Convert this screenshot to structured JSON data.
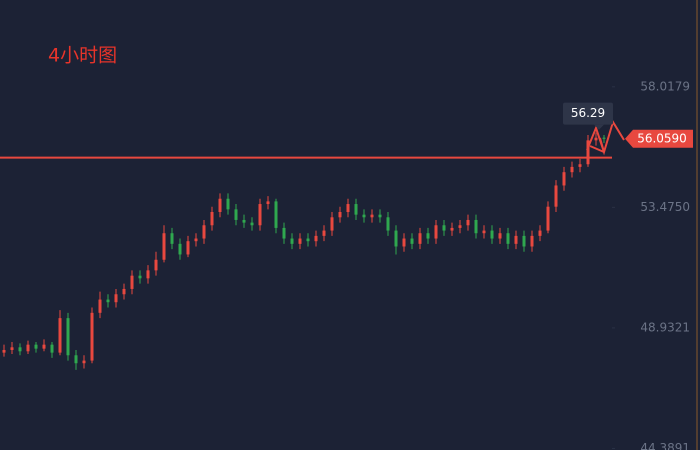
{
  "chart_data": {
    "type": "candlestick",
    "title": "4小时图",
    "up_color": "#e8483f",
    "down_color": "#2fa84f",
    "ylim": [
      44.33,
      61.29
    ],
    "yticks": [
      58.0179,
      {
        "value": 53.475,
        "label": "53.4750"
      },
      48.9321,
      44.3891
    ],
    "last_price": {
      "value": 56.059,
      "label": "56.0590"
    },
    "max_high": 56.29,
    "hline": 55.35,
    "open": [
      48.0,
      48.1,
      48.2,
      48.05,
      48.3,
      48.15,
      48.3,
      48.0,
      49.3,
      47.9,
      47.6,
      47.7,
      49.5,
      50.0,
      49.9,
      50.2,
      50.4,
      50.9,
      50.8,
      51.1,
      51.5,
      52.5,
      52.1,
      51.7,
      52.2,
      52.3,
      52.8,
      53.3,
      53.8,
      53.4,
      53.0,
      52.9,
      52.8,
      53.6,
      53.7,
      52.7,
      52.3,
      52.1,
      52.3,
      52.2,
      52.4,
      52.6,
      53.1,
      53.3,
      53.6,
      53.2,
      53.1,
      53.2,
      53.1,
      52.6,
      52.0,
      52.3,
      52.1,
      52.5,
      52.3,
      52.8,
      52.6,
      52.7,
      52.8,
      53.0,
      52.5,
      52.6,
      52.3,
      52.5,
      52.1,
      52.4,
      52.0,
      52.4,
      52.6,
      53.5,
      54.3,
      54.8,
      55.0,
      55.1,
      56.0,
      56.1
    ],
    "high": [
      48.3,
      48.4,
      48.35,
      48.45,
      48.4,
      48.5,
      48.4,
      49.6,
      49.5,
      48.1,
      47.9,
      49.7,
      50.3,
      50.2,
      50.4,
      50.6,
      51.1,
      51.1,
      51.3,
      51.8,
      52.8,
      52.7,
      52.3,
      52.4,
      52.5,
      53.0,
      53.5,
      54.0,
      54.0,
      53.6,
      53.2,
      53.1,
      53.8,
      53.9,
      53.8,
      52.9,
      52.5,
      52.5,
      52.5,
      52.6,
      52.8,
      53.3,
      53.5,
      53.8,
      53.8,
      53.4,
      53.4,
      53.4,
      53.3,
      52.8,
      52.5,
      52.5,
      52.7,
      52.7,
      53.0,
      53.0,
      52.9,
      53.0,
      53.2,
      53.2,
      52.8,
      52.8,
      52.7,
      52.7,
      52.6,
      52.6,
      52.6,
      52.8,
      53.7,
      54.5,
      55.0,
      55.2,
      55.3,
      56.2,
      56.29,
      56.2
    ],
    "low": [
      47.85,
      47.95,
      47.9,
      47.95,
      48.0,
      48.05,
      47.8,
      47.9,
      47.7,
      47.35,
      47.4,
      47.6,
      49.3,
      49.7,
      49.7,
      50.0,
      50.2,
      50.6,
      50.6,
      50.9,
      51.4,
      51.9,
      51.5,
      51.6,
      52.0,
      52.1,
      52.6,
      53.1,
      53.2,
      52.8,
      52.7,
      52.6,
      52.6,
      53.4,
      52.5,
      52.1,
      51.9,
      51.9,
      52.0,
      52.0,
      52.2,
      52.4,
      52.9,
      53.1,
      53.0,
      52.9,
      52.9,
      52.9,
      52.4,
      51.7,
      51.8,
      51.9,
      51.9,
      52.1,
      52.1,
      52.4,
      52.4,
      52.5,
      52.6,
      52.3,
      52.3,
      52.1,
      52.1,
      51.9,
      51.9,
      51.8,
      51.8,
      52.2,
      52.5,
      53.3,
      54.1,
      54.6,
      54.8,
      55.0,
      55.8,
      55.9
    ],
    "close": [
      48.1,
      48.2,
      48.05,
      48.3,
      48.15,
      48.3,
      48.0,
      49.3,
      47.9,
      47.6,
      47.7,
      49.5,
      50.0,
      49.9,
      50.2,
      50.4,
      50.9,
      50.8,
      51.1,
      51.5,
      52.5,
      52.1,
      51.7,
      52.2,
      52.3,
      52.8,
      53.3,
      53.8,
      53.4,
      53.0,
      52.9,
      52.8,
      53.6,
      53.7,
      52.7,
      52.3,
      52.1,
      52.3,
      52.2,
      52.4,
      52.6,
      53.1,
      53.3,
      53.6,
      53.2,
      53.1,
      53.2,
      53.1,
      52.6,
      52.0,
      52.3,
      52.1,
      52.5,
      52.3,
      52.8,
      52.6,
      52.7,
      52.8,
      53.0,
      52.5,
      52.6,
      52.3,
      52.5,
      52.1,
      52.4,
      52.0,
      52.4,
      52.6,
      53.5,
      54.3,
      54.8,
      55.0,
      55.1,
      56.0,
      56.1,
      56.06
    ]
  }
}
